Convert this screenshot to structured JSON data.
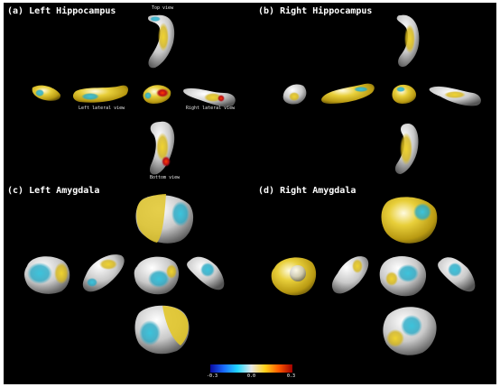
{
  "panels": {
    "a": {
      "title": "(a) Left Hippocampus"
    },
    "b": {
      "title": "(b) Right Hippocampus"
    },
    "c": {
      "title": "(c) Left Amygdala"
    },
    "d": {
      "title": "(d) Right Amygdala"
    }
  },
  "view_labels": {
    "top": "Top view",
    "left_lateral": "Left lateral view",
    "right_lateral": "Right lateral view",
    "bottom": "Bottom view"
  },
  "colorbar": {
    "ticks": [
      "-0.3",
      "0.0",
      "0.3"
    ],
    "colors": [
      "#0a0aa0",
      "#1a6cff",
      "#22d8ff",
      "#e8e8e8",
      "#ffd21a",
      "#ff5a00",
      "#a00000"
    ]
  },
  "colors": {
    "background": "#000000",
    "surface_base": "#dcdcdc",
    "yellow": "#e2c21e",
    "cyan": "#2fb6cf",
    "red": "#c8141e"
  }
}
